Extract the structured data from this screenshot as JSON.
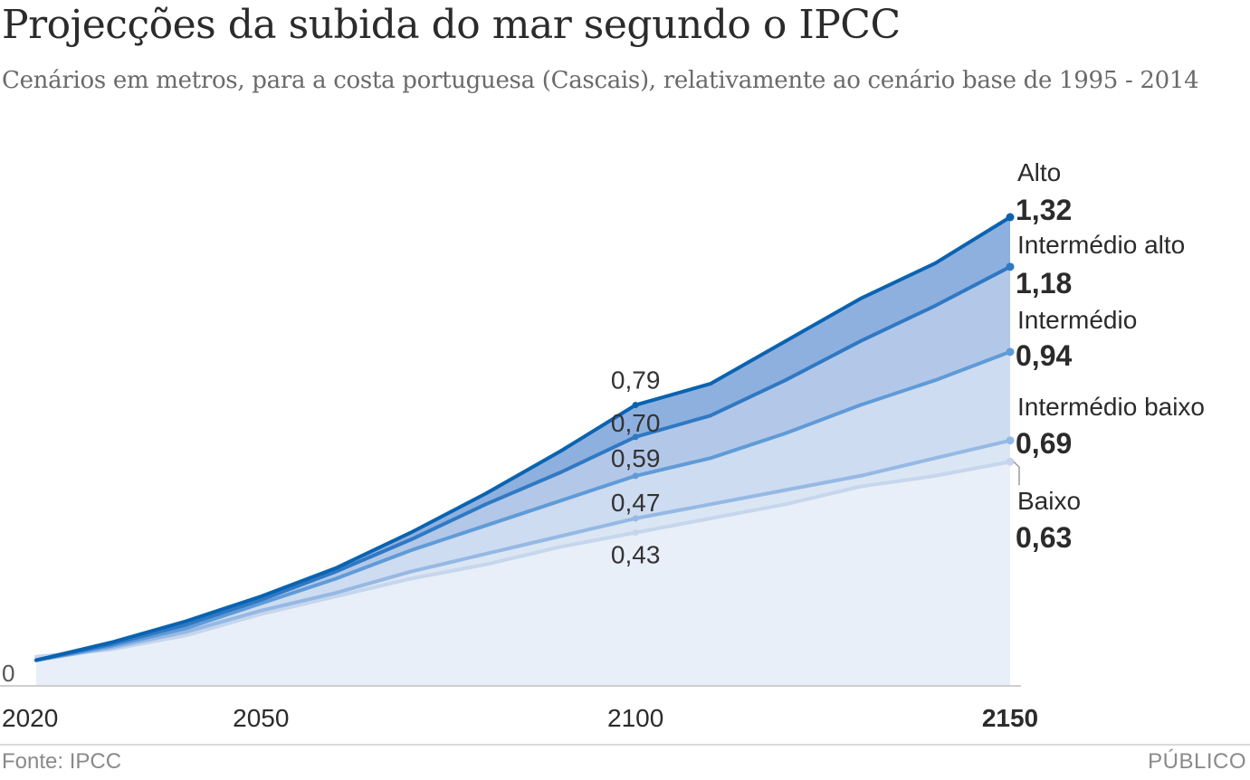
{
  "header": {
    "title": "Projecções da subida do mar segundo o IPCC",
    "subtitle": "Cenários em metros, para a costa portuguesa (Cascais), relativamente ao cenário base de 1995 - 2014"
  },
  "footer": {
    "source": "Fonte: IPCC",
    "brand": "PÚBLICO"
  },
  "chart_data": {
    "type": "area",
    "x": [
      2020,
      2030,
      2040,
      2050,
      2060,
      2070,
      2080,
      2090,
      2100,
      2110,
      2120,
      2130,
      2140,
      2150
    ],
    "x_ticks": [
      {
        "value": 2020,
        "label": "2020",
        "bold": false
      },
      {
        "value": 2050,
        "label": "2050",
        "bold": false
      },
      {
        "value": 2100,
        "label": "2100",
        "bold": false
      },
      {
        "value": 2150,
        "label": "2150",
        "bold": true
      }
    ],
    "y_ticks": [
      {
        "value": 0,
        "label": "0"
      }
    ],
    "ylim": [
      0,
      1.4
    ],
    "series": [
      {
        "name": "Alto",
        "label": "1,32",
        "mid_label": "0,79",
        "line_color": "#0a63b0",
        "fill_color": "#8eb0de",
        "values": [
          0.07,
          0.12,
          0.18,
          0.25,
          0.33,
          0.43,
          0.54,
          0.66,
          0.79,
          0.85,
          0.97,
          1.09,
          1.19,
          1.32
        ]
      },
      {
        "name": "Intermédio alto",
        "label": "1,18",
        "mid_label": "0,70",
        "line_color": "#2f79c4",
        "fill_color": "#b3c8e8",
        "values": [
          0.07,
          0.115,
          0.17,
          0.24,
          0.32,
          0.41,
          0.51,
          0.6,
          0.7,
          0.76,
          0.86,
          0.97,
          1.07,
          1.18
        ]
      },
      {
        "name": "Intermédio",
        "label": "0,94",
        "mid_label": "0,59",
        "line_color": "#5f9bd8",
        "fill_color": "#cddcf1",
        "values": [
          0.07,
          0.11,
          0.16,
          0.23,
          0.3,
          0.38,
          0.45,
          0.52,
          0.59,
          0.64,
          0.71,
          0.79,
          0.86,
          0.94
        ]
      },
      {
        "name": "Intermédio baixo",
        "label": "0,69",
        "mid_label": "0,47",
        "line_color": "#95b9e4",
        "fill_color": "#dbe6f5",
        "values": [
          0.07,
          0.105,
          0.15,
          0.21,
          0.26,
          0.32,
          0.37,
          0.42,
          0.47,
          0.51,
          0.55,
          0.59,
          0.64,
          0.69
        ]
      },
      {
        "name": "Baixo",
        "label": "0,63",
        "mid_label": "0,43",
        "line_color": "#c6d6ec",
        "fill_color": "#e8eff9",
        "values": [
          0.08,
          0.1,
          0.14,
          0.2,
          0.25,
          0.3,
          0.34,
          0.39,
          0.43,
          0.47,
          0.51,
          0.56,
          0.59,
          0.63
        ]
      }
    ]
  }
}
